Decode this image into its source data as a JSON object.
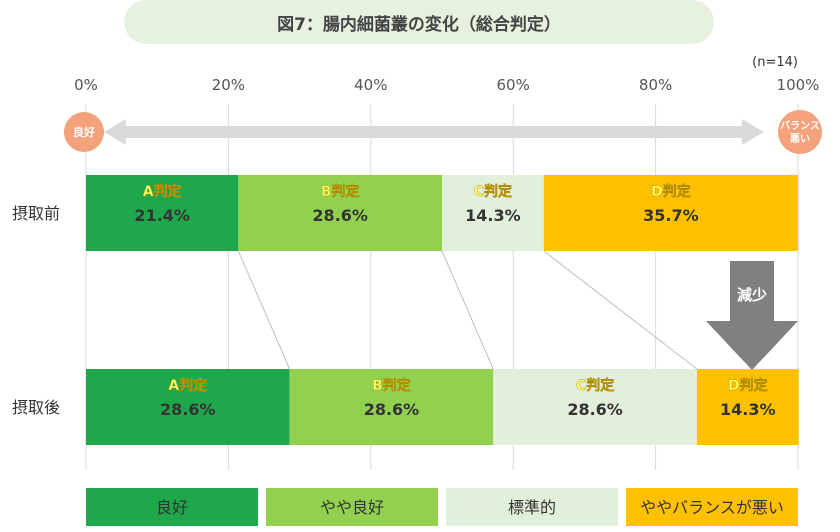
{
  "header": {
    "title": "図7：腸内細菌叢の変化（総合判定）"
  },
  "chart_data": {
    "type": "bar",
    "stacked": true,
    "orientation": "horizontal",
    "sample_note": "(n=14)",
    "x_ticks": [
      "0%",
      "20%",
      "40%",
      "60%",
      "80%",
      "100%"
    ],
    "xlim": [
      0,
      100
    ],
    "grid": true,
    "scale_arrow": {
      "left_label": "良好",
      "right_label": "バランス悪い"
    },
    "categories": [
      "摂取前",
      "摂取後"
    ],
    "series": [
      {
        "name": "良好",
        "segment_label": "A判定",
        "values": [
          21.4,
          28.6
        ],
        "labels": [
          "21.4%",
          "28.6%"
        ],
        "color": "#1fa84b"
      },
      {
        "name": "やや良好",
        "segment_label": "B判定",
        "values": [
          28.6,
          28.6
        ],
        "labels": [
          "28.6%",
          "28.6%"
        ],
        "color": "#92d050"
      },
      {
        "name": "標準的",
        "segment_label": "C判定",
        "values": [
          14.3,
          28.6
        ],
        "labels": [
          "14.3%",
          "28.6%"
        ],
        "color": "#e2efda"
      },
      {
        "name": "ややバランスが悪い",
        "segment_label": "D判定",
        "values": [
          35.7,
          14.3
        ],
        "labels": [
          "35.7%",
          "14.3%"
        ],
        "color": "#ffc000"
      }
    ],
    "annotation": {
      "text": "減少",
      "color": "#808080"
    },
    "legend_position": "bottom"
  }
}
